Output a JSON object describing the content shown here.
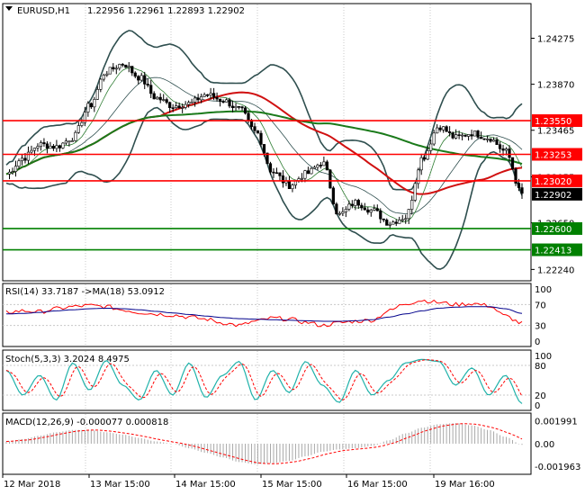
{
  "header": {
    "symbol": "EURUSD,H1",
    "ohlc": "1.22956 1.22961 1.22893 1.22902",
    "arrow_icon": "triangle-down-icon"
  },
  "colors": {
    "grid": "#c8c8c8",
    "border": "#000000",
    "candle": "#000000",
    "bb": "#2f4f4f",
    "ma_fast": "#2e7d32",
    "ma_red": "#d01010",
    "ma_green": "#1a7a1a",
    "resistance": "#ff0000",
    "support": "#008000",
    "rsi": "#ff0000",
    "rsi_ma": "#00008b",
    "stoch_main": "#20b2aa",
    "stoch_signal": "#ff0000",
    "macd_hist": "#a9a9a9",
    "macd_signal": "#ff0000"
  },
  "price_axis": {
    "ticks": [
      "1.24275",
      "1.23870",
      "1.23465",
      "1.23055",
      "1.22650",
      "1.22240"
    ],
    "range": [
      1.2214,
      1.2458
    ]
  },
  "levels": [
    {
      "label": "1.23550",
      "value": 1.2355,
      "kind": "resistance"
    },
    {
      "label": "1.23253",
      "value": 1.23253,
      "kind": "resistance"
    },
    {
      "label": "1.23020",
      "value": 1.2302,
      "kind": "resistance"
    },
    {
      "label": "1.22600",
      "value": 1.226,
      "kind": "support"
    },
    {
      "label": "1.22413",
      "value": 1.22413,
      "kind": "support"
    }
  ],
  "current_price": {
    "label": "1.22902",
    "value": 1.22902
  },
  "rsi": {
    "label": "RSI(14) 33.7187  ->MA(18) 53.0912",
    "ticks": [
      "100",
      "70",
      "30",
      "0"
    ],
    "tick_values": [
      100,
      70,
      30,
      0
    ]
  },
  "stoch": {
    "label": "Stoch(5,3,3) 3.2024 8.4975",
    "ticks": [
      "100",
      "80",
      "20",
      "0"
    ],
    "tick_values": [
      100,
      80,
      20,
      0
    ]
  },
  "macd": {
    "label": "MACD(12,26,9) -0.000077 0.000818",
    "ticks": [
      "0.001991",
      "0.00",
      "-0.001963"
    ],
    "tick_values": [
      0.001991,
      0,
      -0.001963
    ]
  },
  "time_axis": [
    "12 Mar 2018",
    "13 Mar 15:00",
    "14 Mar 15:00",
    "15 Mar 15:00",
    "16 Mar 15:00",
    "19 Mar 16:00"
  ],
  "chart_data": {
    "type": "line",
    "xlabel": "",
    "ylabel": "",
    "x": [
      "12 Mar 2018",
      "13 Mar 15:00",
      "14 Mar 15:00",
      "15 Mar 15:00",
      "16 Mar 15:00",
      "19 Mar 16:00"
    ],
    "close_anchors": [
      1.2308,
      1.2322,
      1.2334,
      1.2332,
      1.234,
      1.2368,
      1.2398,
      1.2405,
      1.2393,
      1.2375,
      1.2368,
      1.237,
      1.2378,
      1.2373,
      1.2365,
      1.2345,
      1.231,
      1.2298,
      1.2308,
      1.2318,
      1.2272,
      1.2283,
      1.2276,
      1.2265,
      1.227,
      1.2322,
      1.235,
      1.234,
      1.2344,
      1.234,
      1.2328,
      1.229
    ],
    "rsi_anchors": [
      55,
      58,
      56,
      62,
      66,
      68,
      66,
      60,
      55,
      52,
      50,
      46,
      42,
      35,
      30,
      38,
      44,
      42,
      36,
      30,
      35,
      38,
      40,
      58,
      72,
      78,
      74,
      70,
      72,
      68,
      48,
      34
    ],
    "rsi_ma_anchors": [
      52,
      53,
      55,
      58,
      60,
      62,
      63,
      62,
      60,
      57,
      54,
      51,
      48,
      45,
      43,
      42,
      41,
      40,
      39,
      38,
      38,
      39,
      41,
      46,
      52,
      58,
      63,
      65,
      66,
      66,
      62,
      53
    ],
    "stoch_anchors": [
      70,
      20,
      60,
      10,
      85,
      30,
      90,
      40,
      10,
      70,
      20,
      85,
      15,
      60,
      88,
      10,
      70,
      25,
      88,
      40,
      5,
      70,
      20,
      50,
      85,
      92,
      88,
      40,
      75,
      20,
      60,
      3
    ],
    "macd_anchors": [
      0.0002,
      0.0004,
      0.0007,
      0.001,
      0.0012,
      0.0012,
      0.001,
      0.0008,
      0.0005,
      0.0002,
      0.0,
      -0.0004,
      -0.0008,
      -0.0012,
      -0.0016,
      -0.0018,
      -0.0017,
      -0.0015,
      -0.0011,
      -0.0007,
      -0.0005,
      -0.0004,
      -0.0002,
      0.0003,
      0.0009,
      0.0014,
      0.0017,
      0.0018,
      0.0016,
      0.0012,
      0.0006,
      -0.0001
    ],
    "series": [
      {
        "name": "EURUSD,H1",
        "values": [
          1.2308,
          1.2398,
          1.2375,
          1.231,
          1.2272,
          1.229
        ]
      }
    ]
  }
}
